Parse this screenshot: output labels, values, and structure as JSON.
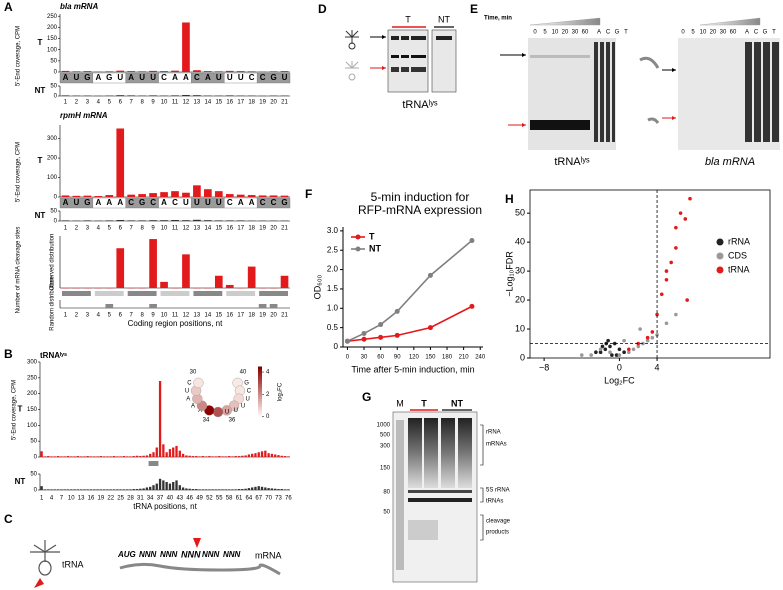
{
  "panel_labels": [
    "A",
    "B",
    "C",
    "D",
    "E",
    "F",
    "G",
    "H"
  ],
  "chart_data": [
    {
      "type": "bar",
      "title": "bla mRNA",
      "y_label": "5'-End coverage, CPM",
      "categories": [
        "1",
        "2",
        "3",
        "4",
        "5",
        "6",
        "7",
        "8",
        "9",
        "10",
        "11",
        "12",
        "13",
        "14",
        "15",
        "16",
        "17",
        "18",
        "19",
        "20",
        "21"
      ],
      "sequence": [
        "A",
        "U",
        "G",
        "A",
        "G",
        "U",
        "A",
        "U",
        "U",
        "C",
        "A",
        "A",
        "C",
        "A",
        "U",
        "U",
        "U",
        "C",
        "C",
        "G",
        "U"
      ],
      "series": [
        {
          "name": "T",
          "color": "#e31a1c",
          "values": [
            5,
            3,
            4,
            2,
            3,
            6,
            4,
            3,
            5,
            4,
            6,
            222,
            8,
            4,
            3,
            5,
            4,
            3,
            2,
            3,
            4
          ],
          "ylim": [
            0,
            260
          ],
          "yticks": [
            0,
            50,
            100,
            150,
            200,
            250
          ]
        },
        {
          "name": "NT",
          "color": "#333333",
          "values": [
            3,
            2,
            2,
            1,
            2,
            4,
            3,
            2,
            3,
            2,
            3,
            5,
            4,
            2,
            2,
            3,
            2,
            2,
            1,
            2,
            2
          ],
          "ylim": [
            0,
            50
          ],
          "yticks": [
            0,
            50
          ]
        }
      ]
    },
    {
      "type": "bar",
      "title": "rpmH mRNA",
      "y_label": "5'-End coverage, CPM",
      "categories": [
        "1",
        "2",
        "3",
        "4",
        "5",
        "6",
        "7",
        "8",
        "9",
        "10",
        "11",
        "12",
        "13",
        "14",
        "15",
        "16",
        "17",
        "18",
        "19",
        "20",
        "21"
      ],
      "sequence": [
        "A",
        "U",
        "G",
        "A",
        "A",
        "A",
        "C",
        "G",
        "C",
        "A",
        "C",
        "U",
        "U",
        "U",
        "U",
        "C",
        "A",
        "A",
        "C",
        "C",
        "G"
      ],
      "series": [
        {
          "name": "T",
          "color": "#e31a1c",
          "values": [
            8,
            6,
            7,
            5,
            10,
            352,
            12,
            15,
            20,
            25,
            30,
            22,
            60,
            40,
            30,
            15,
            12,
            10,
            8,
            8,
            7
          ],
          "ylim": [
            0,
            370
          ],
          "yticks": [
            0,
            100,
            200,
            300
          ]
        },
        {
          "name": "NT",
          "color": "#333333",
          "values": [
            3,
            2,
            3,
            2,
            3,
            5,
            3,
            3,
            4,
            4,
            5,
            4,
            6,
            4,
            3,
            3,
            3,
            2,
            2,
            2,
            2
          ],
          "ylim": [
            0,
            50
          ],
          "yticks": [
            0,
            50
          ]
        }
      ]
    },
    {
      "type": "bar",
      "y_label": "Number of mRNA cleavage sites",
      "x_label": "Coding region positions, nt",
      "categories": [
        "1",
        "2",
        "3",
        "4",
        "5",
        "6",
        "7",
        "8",
        "9",
        "10",
        "11",
        "12",
        "13",
        "14",
        "15",
        "16",
        "17",
        "18",
        "19",
        "20",
        "21"
      ],
      "series": [
        {
          "name": "Observed distribution",
          "color": "#e31a1c",
          "values": [
            0,
            0,
            0,
            0,
            0,
            13,
            0,
            0,
            16,
            2,
            0,
            11,
            0,
            0,
            4,
            1,
            0,
            7,
            0,
            0,
            4
          ],
          "ylim": [
            0,
            17
          ]
        },
        {
          "name": "Random distribution",
          "color": "#888888",
          "values": [
            0,
            0,
            0,
            0,
            1,
            0,
            0,
            0,
            1,
            0,
            0,
            0,
            0,
            0,
            0,
            0,
            0,
            0,
            1,
            1,
            0
          ],
          "ylim": [
            0,
            2
          ]
        }
      ]
    },
    {
      "type": "bar",
      "title": "tRNAˡʸˢ",
      "y_label": "5'-End coverage, CPM",
      "x_label": "tRNA positions, nt",
      "categories": [
        "1",
        null,
        null,
        "4",
        null,
        null,
        "7",
        null,
        null,
        "10",
        null,
        null,
        "13",
        null,
        null,
        "16",
        null,
        null,
        "19",
        null,
        null,
        "22",
        null,
        null,
        "25",
        null,
        null,
        "28",
        null,
        null,
        "31",
        null,
        null,
        "34",
        null,
        null,
        "37",
        null,
        null,
        "40",
        null,
        null,
        "43",
        null,
        null,
        "46",
        null,
        null,
        "49",
        null,
        null,
        "52",
        null,
        null,
        "55",
        null,
        null,
        "58",
        null,
        null,
        "61",
        null,
        null,
        "64",
        null,
        null,
        "67",
        null,
        null,
        "70",
        null,
        null,
        "73",
        null,
        null,
        "76"
      ],
      "series": [
        {
          "name": "T",
          "color": "#e31a1c",
          "values": [
            18,
            2,
            3,
            2,
            2,
            3,
            2,
            2,
            3,
            2,
            2,
            3,
            2,
            2,
            3,
            2,
            2,
            2,
            3,
            2,
            2,
            2,
            3,
            2,
            2,
            3,
            2,
            2,
            3,
            4,
            3,
            4,
            5,
            10,
            15,
            30,
            240,
            40,
            15,
            25,
            30,
            35,
            20,
            10,
            5,
            4,
            3,
            3,
            2,
            3,
            2,
            3,
            2,
            2,
            3,
            2,
            2,
            3,
            2,
            3,
            3,
            4,
            5,
            8,
            10,
            12,
            15,
            18,
            20,
            12,
            10,
            8,
            6,
            4,
            3,
            2
          ],
          "ylim": [
            0,
            300
          ],
          "yticks": [
            0,
            50,
            100,
            150,
            200,
            250,
            300
          ]
        },
        {
          "name": "NT",
          "color": "#333333",
          "values": [
            12,
            2,
            2,
            2,
            2,
            2,
            2,
            2,
            2,
            2,
            2,
            2,
            2,
            2,
            2,
            2,
            2,
            2,
            2,
            2,
            2,
            2,
            2,
            2,
            2,
            2,
            2,
            2,
            3,
            3,
            4,
            5,
            8,
            10,
            15,
            20,
            35,
            30,
            25,
            20,
            25,
            30,
            15,
            8,
            5,
            4,
            3,
            3,
            2,
            2,
            2,
            2,
            2,
            2,
            2,
            2,
            2,
            2,
            2,
            2,
            3,
            3,
            4,
            6,
            8,
            10,
            12,
            10,
            8,
            6,
            5,
            4,
            3,
            3,
            2,
            2
          ],
          "ylim": [
            0,
            50
          ],
          "yticks": [
            0,
            50
          ]
        }
      ],
      "inset": {
        "nucleotides": [
          "G",
          "C",
          "U",
          "U",
          "U",
          "U",
          "A",
          "A",
          "A",
          "U",
          "C"
        ],
        "values": [
          0.2,
          0.3,
          0.5,
          1,
          1.5,
          3,
          4.5,
          2,
          1.2,
          0.8,
          0.3
        ],
        "positions": [
          "30",
          "34",
          "36",
          "40"
        ],
        "range": [
          0,
          4.5
        ],
        "colorbar_ticks": [
          0,
          2,
          4
        ],
        "colorbar_label": "log₂FC"
      }
    },
    {
      "type": "line",
      "title": [
        "5-min induction for",
        "RFP-mRNA expression"
      ],
      "x_label": "Time after 5-min induction, min",
      "y_label": "OD₆₀₀",
      "x": [
        0,
        30,
        60,
        90,
        150,
        225
      ],
      "series": [
        {
          "name": "T",
          "color": "#e31a1c",
          "values": [
            0.15,
            0.2,
            0.25,
            0.3,
            0.5,
            1.05
          ]
        },
        {
          "name": "NT",
          "color": "#808080",
          "values": [
            0.15,
            0.35,
            0.58,
            0.92,
            1.85,
            2.75
          ]
        }
      ],
      "xlim": [
        -8,
        245
      ],
      "xticks": [
        0,
        30,
        60,
        90,
        120,
        150,
        180,
        210,
        240
      ],
      "ylim": [
        0,
        3.1
      ],
      "yticks": [
        0,
        0.5,
        {
          "value": 1,
          "label": "1.0"
        },
        1.5,
        {
          "value": 2,
          "label": "2.0"
        },
        2.5,
        {
          "value": 3,
          "label": "3.0"
        }
      ],
      "legend": "upper left"
    },
    {
      "type": "scatter",
      "x_label": "Log₂FC",
      "y_label": "−Log₁₀FDR",
      "series": [
        {
          "name": "rRNA",
          "color": "#222222",
          "x": [
            -2,
            -1.5,
            -1,
            -0.5,
            0,
            0.5,
            -1.2,
            -0.8,
            -2.5,
            -1.8,
            -0.3,
            -1.4
          ],
          "y": [
            2,
            3,
            4,
            5,
            3,
            2,
            6,
            1,
            2,
            4,
            1,
            5
          ]
        },
        {
          "name": "CDS",
          "color": "#999999",
          "x": [
            -3,
            -2,
            -1,
            0,
            1,
            2,
            3,
            4,
            5,
            6,
            -4,
            1.5,
            2.5,
            3.5,
            0.5,
            2.2
          ],
          "y": [
            1,
            3,
            2,
            1,
            2,
            4,
            6,
            8,
            12,
            15,
            1,
            3,
            5,
            7,
            6,
            10
          ]
        },
        {
          "name": "tRNA",
          "color": "#e31a1c",
          "x": [
            1,
            2,
            3,
            3.5,
            4,
            4.5,
            5,
            5.5,
            6,
            6.5,
            7,
            7.5,
            6,
            5,
            7.2
          ],
          "y": [
            3,
            5,
            7,
            9,
            15,
            22,
            27,
            33,
            45,
            50,
            48,
            55,
            38,
            30,
            20
          ]
        }
      ],
      "xlim": [
        -9.5,
        16
      ],
      "xticks": [
        {
          "value": -8,
          "label": "−8"
        },
        0,
        4
      ],
      "ylim": [
        0,
        58
      ],
      "yticks": [
        0,
        10,
        20,
        30,
        40,
        50
      ],
      "vline": 4,
      "hline": 5,
      "legend": "upper right"
    }
  ],
  "diagrams": {
    "C": {
      "trna": "tRNA",
      "mrna": "mRNA",
      "sequence": [
        "AUG",
        "NNN",
        "NNN",
        "NNN",
        "NNN",
        "NNN"
      ]
    },
    "D": {
      "lanes": [
        "T",
        "NT"
      ],
      "label": "tRNAˡʸˢ"
    },
    "E": {
      "time_label": "Time, min",
      "gels": [
        {
          "lanes": [
            "0",
            "5",
            "10",
            "20",
            "30",
            "60",
            "A",
            "C",
            "G",
            "T"
          ],
          "label": "tRNAˡʸˢ"
        },
        {
          "lanes": [
            "0",
            "5",
            "10",
            "20",
            "30",
            "60",
            "A",
            "C",
            "G",
            "T"
          ],
          "label": "bla mRNA"
        }
      ]
    },
    "G": {
      "lanes": [
        "M",
        "T",
        "NT"
      ],
      "ladder": [
        1000,
        500,
        300,
        150,
        80,
        50
      ],
      "annotations": [
        "rRNA",
        "mRNAs",
        "5S rRNA",
        "tRNAs",
        "cleavage",
        "products"
      ]
    }
  }
}
